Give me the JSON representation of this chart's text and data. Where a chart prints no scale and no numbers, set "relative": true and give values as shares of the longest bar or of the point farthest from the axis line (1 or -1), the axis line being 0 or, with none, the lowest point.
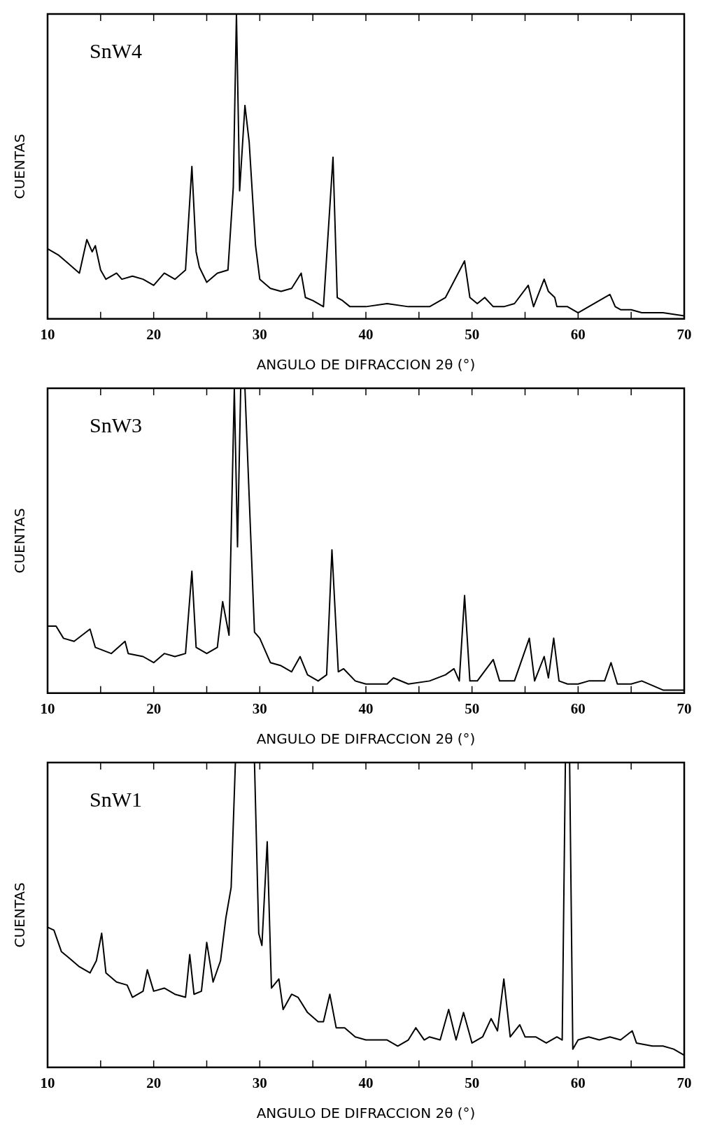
{
  "chart_data": [
    {
      "type": "line",
      "relative": true,
      "annotations": [
        "SnW4"
      ],
      "xlabel": "ANGULO DE DIFRACCION 2θ (°)",
      "ylabel": "CUENTAS",
      "color": "#000000",
      "marker": "none",
      "xlim": [
        10,
        70
      ],
      "xticks": [
        10,
        {
          "value": 15,
          "label": null
        },
        20,
        {
          "value": 25,
          "label": null
        },
        30,
        {
          "value": 35,
          "label": null
        },
        40,
        {
          "value": 45,
          "label": null
        },
        50,
        {
          "value": 55,
          "label": null
        },
        60,
        {
          "value": 65,
          "label": null
        },
        70
      ],
      "x": [
        10,
        11,
        12,
        13,
        13.7,
        14.2,
        14.5,
        15,
        15.5,
        16.5,
        17,
        18,
        19,
        20,
        21,
        22,
        23,
        23.6,
        24,
        24.3,
        25,
        26,
        27,
        27.5,
        27.8,
        28.1,
        28.6,
        29,
        29.6,
        30,
        31,
        32,
        33,
        33.9,
        34.3,
        35,
        36,
        36.9,
        37.3,
        37.8,
        38.5,
        40,
        42,
        44,
        46,
        47.5,
        49.3,
        49.8,
        50.5,
        51.2,
        52,
        53,
        54,
        55.3,
        55.8,
        56.8,
        57.2,
        57.8,
        58,
        59,
        60,
        61,
        63,
        63.5,
        64,
        65,
        66,
        68,
        70
      ],
      "values": [
        0.23,
        0.21,
        0.18,
        0.15,
        0.26,
        0.22,
        0.24,
        0.16,
        0.13,
        0.15,
        0.13,
        0.14,
        0.13,
        0.11,
        0.15,
        0.13,
        0.16,
        0.5,
        0.22,
        0.17,
        0.12,
        0.15,
        0.16,
        0.43,
        1,
        0.42,
        0.7,
        0.58,
        0.24,
        0.13,
        0.1,
        0.09,
        0.1,
        0.15,
        0.07,
        0.06,
        0.04,
        0.53,
        0.07,
        0.06,
        0.04,
        0.04,
        0.05,
        0.04,
        0.04,
        0.07,
        0.19,
        0.07,
        0.05,
        0.07,
        0.04,
        0.04,
        0.05,
        0.11,
        0.04,
        0.13,
        0.09,
        0.07,
        0.04,
        0.04,
        0.02,
        0.04,
        0.08,
        0.04,
        0.03,
        0.03,
        0.02,
        0.02,
        0.01
      ]
    },
    {
      "type": "line",
      "relative": true,
      "annotations": [
        "SnW3"
      ],
      "xlabel": "ANGULO DE DIFRACCION 2θ (°)",
      "ylabel": "CUENTAS",
      "color": "#000000",
      "marker": "none",
      "xlim": [
        10,
        70
      ],
      "xticks": [
        10,
        {
          "value": 15,
          "label": null
        },
        20,
        {
          "value": 25,
          "label": null
        },
        30,
        {
          "value": 35,
          "label": null
        },
        40,
        {
          "value": 45,
          "label": null
        },
        50,
        {
          "value": 55,
          "label": null
        },
        60,
        {
          "value": 65,
          "label": null
        },
        70
      ],
      "x": [
        10,
        10.8,
        11.5,
        12.5,
        14,
        14.5,
        16,
        17.3,
        17.6,
        19,
        20,
        21,
        22,
        23,
        23.6,
        24,
        25,
        26,
        26.5,
        27.1,
        27.6,
        27.9,
        28.2,
        28.6,
        29.5,
        30,
        31,
        32,
        33,
        33.8,
        34.5,
        35.5,
        36.3,
        36.8,
        37.4,
        37.9,
        39,
        40,
        42,
        42.6,
        44,
        46,
        47.5,
        48.3,
        48.8,
        49.3,
        49.8,
        50.5,
        52,
        52.6,
        54,
        55.4,
        55.9,
        56.8,
        57.2,
        57.7,
        58.2,
        59,
        60,
        61,
        62.5,
        63.1,
        63.7,
        65,
        66,
        68,
        70
      ],
      "values": [
        0.22,
        0.22,
        0.18,
        0.17,
        0.21,
        0.15,
        0.13,
        0.17,
        0.13,
        0.12,
        0.1,
        0.13,
        0.12,
        0.13,
        0.4,
        0.15,
        0.13,
        0.15,
        0.3,
        0.19,
        1,
        0.48,
        1,
        1,
        0.2,
        0.18,
        0.1,
        0.09,
        0.07,
        0.12,
        0.06,
        0.04,
        0.06,
        0.47,
        0.07,
        0.08,
        0.04,
        0.03,
        0.03,
        0.05,
        0.03,
        0.04,
        0.06,
        0.08,
        0.04,
        0.32,
        0.04,
        0.04,
        0.11,
        0.04,
        0.04,
        0.18,
        0.04,
        0.12,
        0.05,
        0.18,
        0.04,
        0.03,
        0.03,
        0.04,
        0.04,
        0.1,
        0.03,
        0.03,
        0.04,
        0.01,
        0.01
      ]
    },
    {
      "type": "line",
      "relative": true,
      "annotations": [
        "SnW1"
      ],
      "xlabel": "ANGULO DE DIFRACCION 2θ (°)",
      "ylabel": "CUENTAS",
      "color": "#000000",
      "marker": "none",
      "xlim": [
        10,
        70
      ],
      "xticks": [
        10,
        {
          "value": 15,
          "label": null
        },
        20,
        {
          "value": 25,
          "label": null
        },
        30,
        {
          "value": 35,
          "label": null
        },
        40,
        {
          "value": 45,
          "label": null
        },
        50,
        {
          "value": 55,
          "label": null
        },
        60,
        {
          "value": 65,
          "label": null
        },
        70
      ],
      "x": [
        10,
        10.6,
        11.3,
        12,
        13,
        14,
        14.6,
        15.1,
        15.5,
        16.5,
        17.5,
        18,
        19,
        19.4,
        20,
        21,
        22,
        23,
        23.4,
        23.8,
        24.5,
        25,
        25.6,
        26.3,
        26.8,
        27.3,
        27.7,
        29.5,
        29.9,
        30.2,
        30.7,
        31.1,
        31.8,
        32.2,
        33,
        33.6,
        34.5,
        35.5,
        36,
        36.6,
        37.2,
        38,
        39,
        40,
        42,
        43,
        44,
        44.7,
        45.5,
        46,
        47,
        47.8,
        48.5,
        49.2,
        50,
        51,
        51.8,
        52.4,
        53,
        53.6,
        54.5,
        55,
        56,
        57,
        58,
        58.5,
        58.8,
        59.2,
        59.5,
        60,
        61,
        62,
        63,
        64,
        65.1,
        65.5,
        67,
        68,
        69,
        70
      ],
      "values": [
        0.46,
        0.45,
        0.38,
        0.36,
        0.33,
        0.31,
        0.35,
        0.44,
        0.31,
        0.28,
        0.27,
        0.23,
        0.25,
        0.32,
        0.25,
        0.26,
        0.24,
        0.23,
        0.37,
        0.24,
        0.25,
        0.41,
        0.28,
        0.35,
        0.49,
        0.59,
        1,
        1,
        0.44,
        0.4,
        0.74,
        0.26,
        0.29,
        0.19,
        0.24,
        0.23,
        0.18,
        0.15,
        0.15,
        0.24,
        0.13,
        0.13,
        0.1,
        0.09,
        0.09,
        0.07,
        0.09,
        0.13,
        0.09,
        0.1,
        0.09,
        0.19,
        0.09,
        0.18,
        0.08,
        0.1,
        0.16,
        0.12,
        0.29,
        0.1,
        0.14,
        0.1,
        0.1,
        0.08,
        0.1,
        0.09,
        1,
        1,
        0.06,
        0.09,
        0.1,
        0.09,
        0.1,
        0.09,
        0.12,
        0.08,
        0.07,
        0.07,
        0.06,
        0.04
      ]
    }
  ]
}
